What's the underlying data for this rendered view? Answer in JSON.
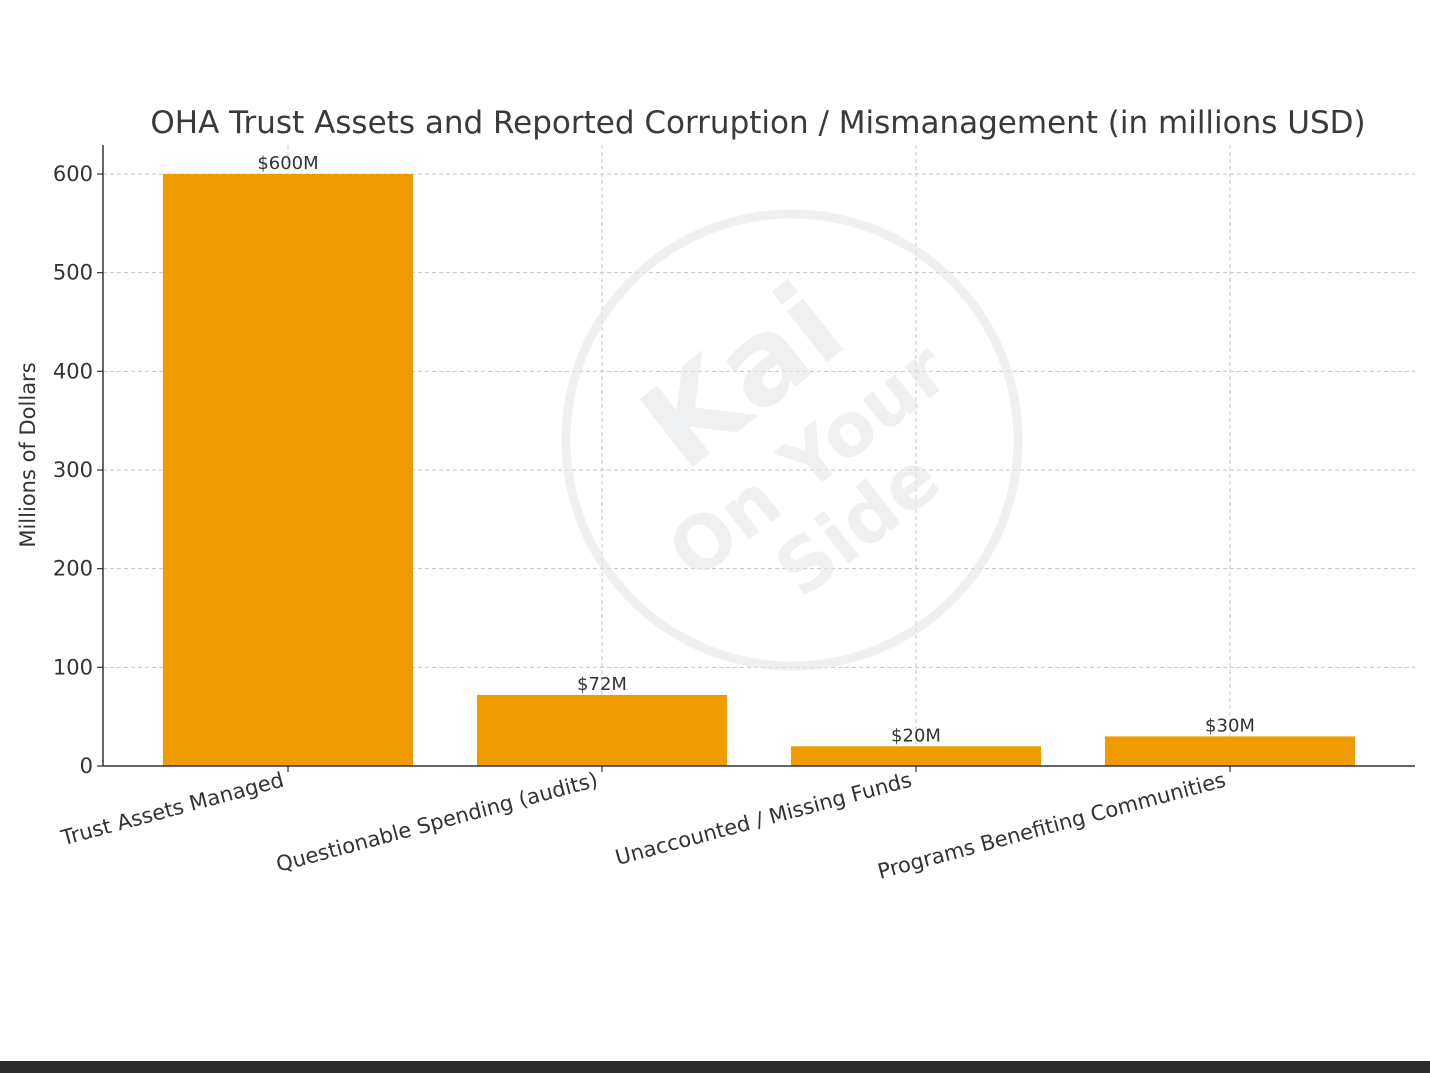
{
  "chart_data": {
    "type": "bar",
    "title": "OHA Trust Assets and Reported Corruption / Mismanagement (in millions USD)",
    "xlabel": "",
    "ylabel": "Millions of Dollars",
    "categories": [
      "Trust Assets Managed",
      "Questionable Spending (audits)",
      "Unaccounted / Missing Funds",
      "Programs Benefiting Communities"
    ],
    "values": [
      600,
      72,
      20,
      30
    ],
    "data_labels": [
      "$600M",
      "$72M",
      "$20M",
      "$30M"
    ],
    "ylim": [
      0,
      630
    ],
    "yticks": [
      0,
      100,
      200,
      300,
      400,
      500,
      600
    ],
    "grid": true,
    "bar_color": "#f09c00"
  },
  "watermark": {
    "text_lines": [
      "Kai",
      "On Your",
      "Side"
    ]
  }
}
